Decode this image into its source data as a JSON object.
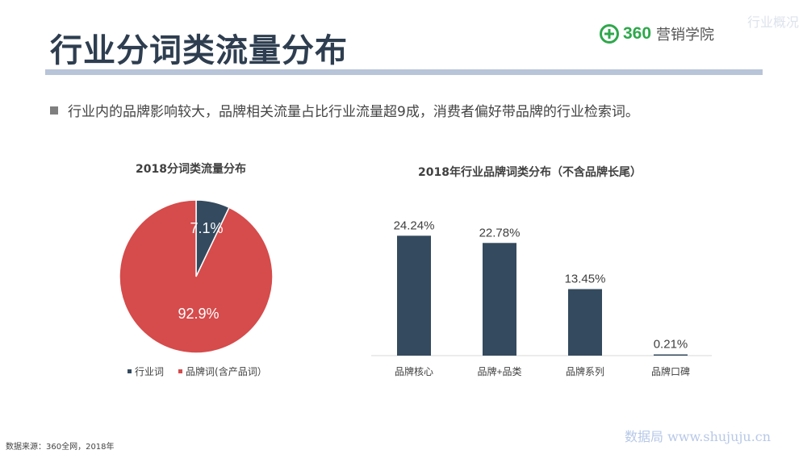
{
  "header": {
    "title": "行业分词类流量分布",
    "section_tag": "行业概况",
    "logo_name": "360",
    "logo_subtitle": "营销学院"
  },
  "summary": {
    "text": "行业内的品牌影响较大，品牌相关流量占比行业流量超9成，消费者偏好带品牌的行业检索词。"
  },
  "colors": {
    "navy": "#344a5e",
    "red": "#d64b4b",
    "brand_green": "#2ea84b"
  },
  "chart_data": [
    {
      "type": "pie",
      "title": "2018分词类流量分布",
      "slices": [
        {
          "name": "行业词",
          "value": 7.1,
          "label": "7.1%",
          "color": "#344a5e"
        },
        {
          "name": "品牌词(含产品词）",
          "value": 92.9,
          "label": "92.9%",
          "color": "#d64b4b"
        }
      ],
      "legend_position": "bottom"
    },
    {
      "type": "bar",
      "title": "2018年行业品牌词类分布（不含品牌长尾）",
      "categories": [
        "品牌核心",
        "品牌+品类",
        "品牌系列",
        "品牌口碑"
      ],
      "values": [
        24.24,
        22.78,
        13.45,
        0.21
      ],
      "value_labels": [
        "24.24%",
        "22.78%",
        "13.45%",
        "0.21%"
      ],
      "color": "#344a5e",
      "ylim": [
        0,
        30
      ],
      "grid": false
    }
  ],
  "footer": {
    "source": "数据来源：360全网，2018年",
    "watermark": "数据局 www.shujuju.cn"
  }
}
